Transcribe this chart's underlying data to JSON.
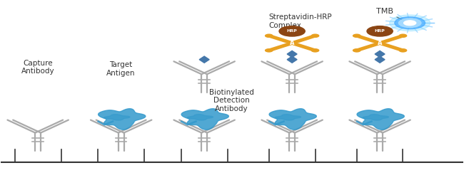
{
  "background_color": "#ffffff",
  "panel_labels": [
    "Capture\nAntibody",
    "Target\nAntigen",
    "Biotinylated\nDetection\nAntibody",
    "Streptavidin-HRP\nComplex",
    "TMB"
  ],
  "gray_color": "#aaaaaa",
  "dark_gray": "#888888",
  "blue_protein": "#3399cc",
  "orange_hrp": "#e8a020",
  "brown_hrp": "#8b4513",
  "biotin_blue": "#4477aa",
  "line_color": "#333333",
  "text_color": "#333333",
  "font_size": 8,
  "panels": [
    0.08,
    0.26,
    0.44,
    0.63,
    0.82
  ]
}
